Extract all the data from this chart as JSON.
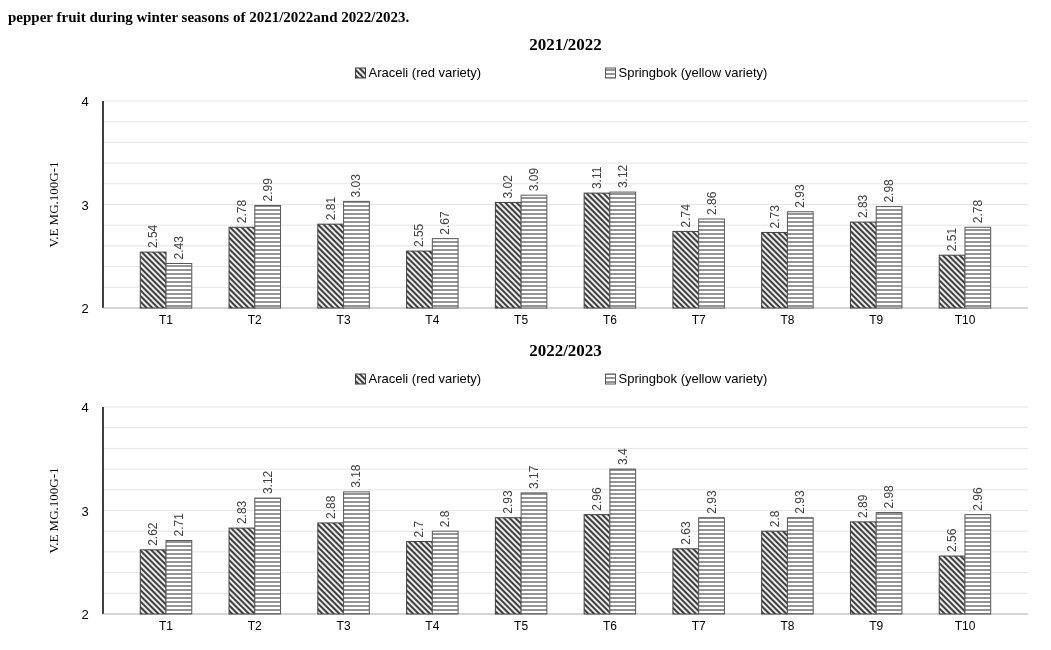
{
  "chart_data": [
    {
      "type": "bar",
      "title": "2021/2022",
      "ylabel": "V.E MG.100G-1",
      "annotations": [
        "pepper fruit during winter seasons of 2021/2022and 2022/2023."
      ],
      "categories": [
        "T1",
        "T2",
        "T3",
        "T4",
        "T5",
        "T6",
        "T7",
        "T8",
        "T9",
        "T10"
      ],
      "series": [
        {
          "name": "Araceli (red variety)",
          "color": "#404040",
          "values": [
            2.54,
            2.78,
            2.81,
            2.55,
            3.02,
            3.11,
            2.74,
            2.73,
            2.83,
            2.51
          ]
        },
        {
          "name": "Springbok (yellow variety)",
          "color": "#595959",
          "values": [
            2.43,
            2.99,
            3.03,
            2.67,
            3.09,
            3.12,
            2.86,
            2.93,
            2.98,
            2.78
          ]
        }
      ],
      "ylim": [
        2,
        4
      ],
      "yticks": [
        2,
        {
          "value": 2.2,
          "label": null
        },
        {
          "value": 2.4,
          "label": null
        },
        {
          "value": 2.6,
          "label": null
        },
        {
          "value": 2.8,
          "label": null
        },
        3,
        {
          "value": 3.2,
          "label": null
        },
        {
          "value": 3.4,
          "label": null
        },
        {
          "value": 3.6,
          "label": null
        },
        {
          "value": 3.8,
          "label": null
        },
        4
      ],
      "grid": "y",
      "legend": "top",
      "data_labels": true
    },
    {
      "type": "bar",
      "title": "2022/2023",
      "ylabel": "V.E MG.100G-1",
      "categories": [
        "T1",
        "T2",
        "T3",
        "T4",
        "T5",
        "T6",
        "T7",
        "T8",
        "T9",
        "T10"
      ],
      "series": [
        {
          "name": "Araceli (red variety)",
          "color": "#404040",
          "values": [
            2.62,
            2.83,
            2.88,
            2.7,
            2.93,
            2.96,
            2.63,
            2.8,
            2.89,
            2.56
          ]
        },
        {
          "name": "Springbok (yellow variety)",
          "color": "#595959",
          "values": [
            2.71,
            3.12,
            3.18,
            2.8,
            3.17,
            3.4,
            2.93,
            2.93,
            2.98,
            2.96
          ]
        }
      ],
      "ylim": [
        2,
        4
      ],
      "yticks": [
        2,
        {
          "value": 2.2,
          "label": null
        },
        {
          "value": 2.4,
          "label": null
        },
        {
          "value": 2.6,
          "label": null
        },
        {
          "value": 2.8,
          "label": null
        },
        3,
        {
          "value": 3.2,
          "label": null
        },
        {
          "value": 3.4,
          "label": null
        },
        {
          "value": 3.6,
          "label": null
        },
        {
          "value": 3.8,
          "label": null
        },
        4
      ],
      "grid": "y",
      "legend": "top",
      "data_labels": true
    }
  ]
}
